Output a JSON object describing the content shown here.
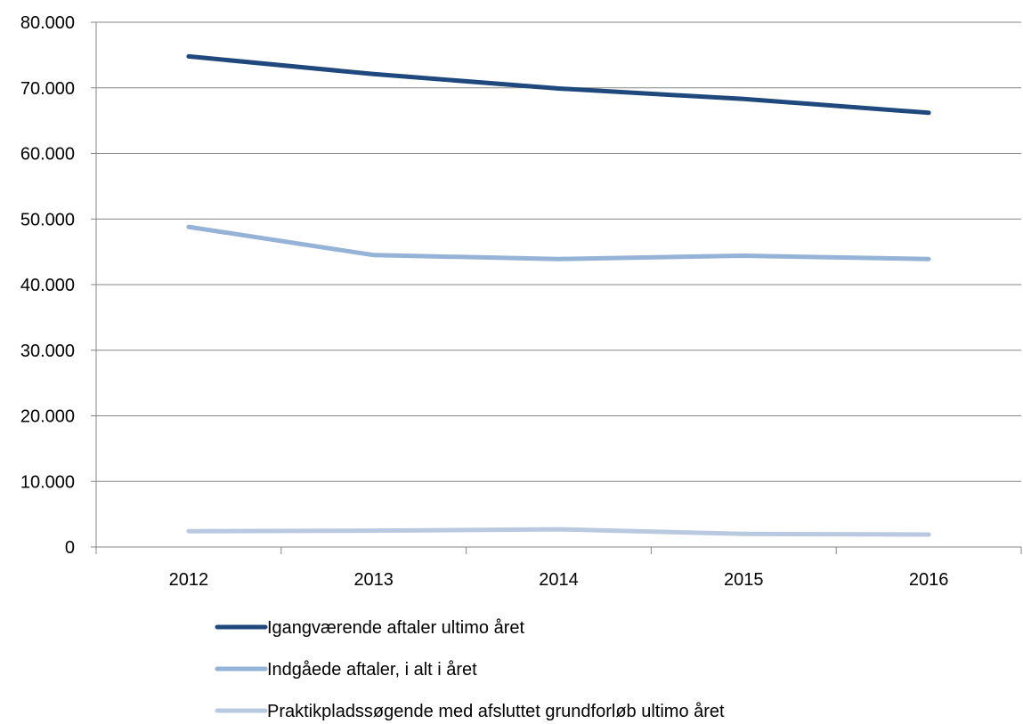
{
  "chart_data": {
    "type": "line",
    "title": "",
    "xlabel": "",
    "ylabel": "",
    "categories": [
      "2012",
      "2013",
      "2014",
      "2015",
      "2016"
    ],
    "ylim": [
      0,
      80000
    ],
    "yticks": [
      0,
      10000,
      20000,
      30000,
      40000,
      50000,
      60000,
      70000,
      80000
    ],
    "ytick_labels": [
      "0",
      "10.000",
      "20.000",
      "30.000",
      "40.000",
      "50.000",
      "60.000",
      "70.000",
      "80.000"
    ],
    "grid": true,
    "legend_position": "bottom",
    "series": [
      {
        "name": "Igangværende aftaler ultimo året",
        "color": "#1f497d",
        "values": [
          74800,
          72100,
          69900,
          68300,
          66200
        ]
      },
      {
        "name": "Indgåede aftaler, i alt i året",
        "color": "#95b3d7",
        "values": [
          48800,
          44500,
          43900,
          44400,
          43900
        ]
      },
      {
        "name": "Praktikpladssøgende med afsluttet grundforløb ultimo året",
        "color": "#b9c9e0",
        "values": [
          2400,
          2500,
          2700,
          2000,
          1900
        ]
      }
    ]
  }
}
